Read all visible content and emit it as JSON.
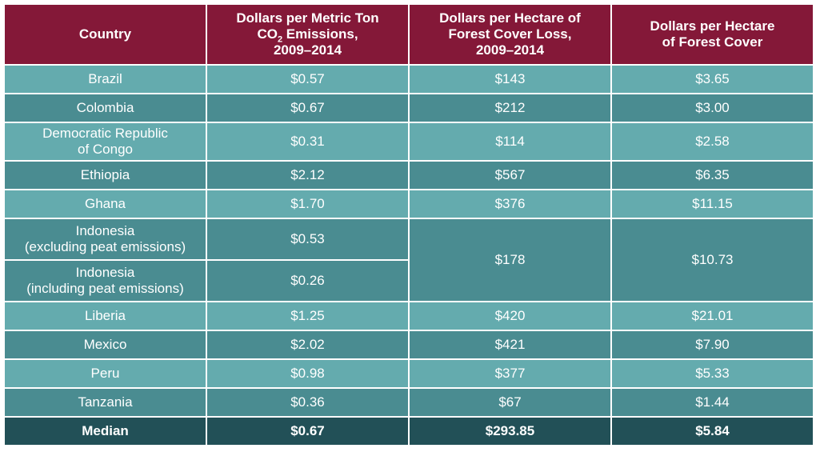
{
  "headers": {
    "country": "Country",
    "co2_line1": "Dollars per Metric Ton",
    "co2_prefix": "CO",
    "co2_sub": "2",
    "co2_suffix": " Emissions,",
    "co2_years": "2009–2014",
    "loss_line1": "Dollars per Hectare of",
    "loss_line2": "Forest Cover Loss,",
    "loss_years": "2009–2014",
    "cover_line1": "Dollars per Hectare",
    "cover_line2": "of Forest Cover"
  },
  "rows": [
    {
      "country": "Brazil",
      "co2": "$0.57",
      "loss": "$143",
      "cover": "$3.65"
    },
    {
      "country": "Colombia",
      "co2": "$0.67",
      "loss": "$212",
      "cover": "$3.00"
    },
    {
      "country_l1": "Democratic Republic",
      "country_l2": "of Congo",
      "co2": "$0.31",
      "loss": "$114",
      "cover": "$2.58"
    },
    {
      "country": "Ethiopia",
      "co2": "$2.12",
      "loss": "$567",
      "cover": "$6.35"
    },
    {
      "country": "Ghana",
      "co2": "$1.70",
      "loss": "$376",
      "cover": "$11.15"
    },
    {
      "country_l1": "Indonesia",
      "country_l2": "(excluding peat emissions)",
      "co2": "$0.53",
      "loss": "$178",
      "cover": "$10.73"
    },
    {
      "country_l1": "Indonesia",
      "country_l2": "(including peat emissions)",
      "co2": "$0.26"
    },
    {
      "country": "Liberia",
      "co2": "$1.25",
      "loss": "$420",
      "cover": "$21.01"
    },
    {
      "country": "Mexico",
      "co2": "$2.02",
      "loss": "$421",
      "cover": "$7.90"
    },
    {
      "country": "Peru",
      "co2": "$0.98",
      "loss": "$377",
      "cover": "$5.33"
    },
    {
      "country": "Tanzania",
      "co2": "$0.36",
      "loss": "$67",
      "cover": "$1.44"
    }
  ],
  "median": {
    "label": "Median",
    "co2": "$0.67",
    "loss": "$293.85",
    "cover": "$5.84"
  }
}
